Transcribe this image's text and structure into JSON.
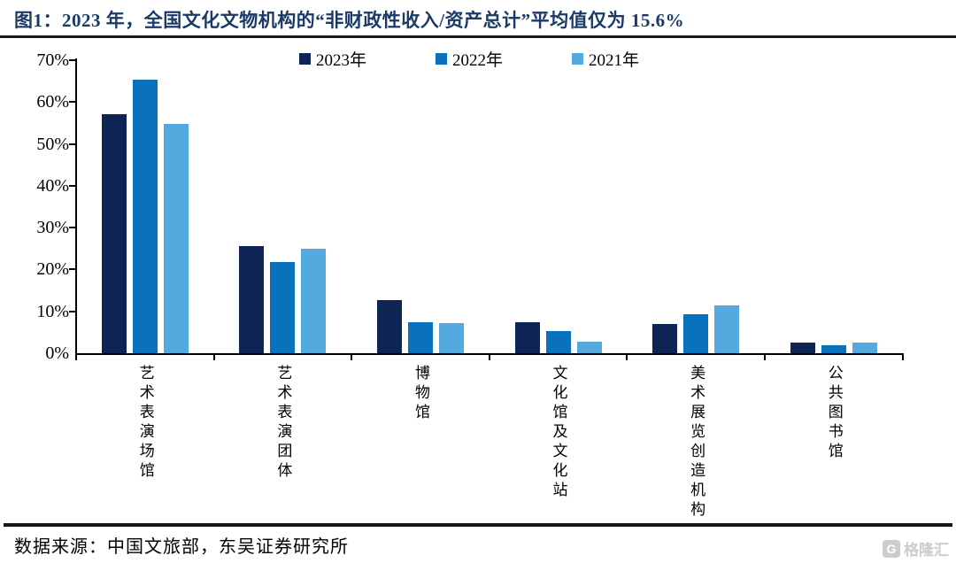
{
  "header": {
    "title": "图1：2023 年，全国文化文物机构的“非财政性收入/资产总计”平均值仅为 15.6%"
  },
  "footer": {
    "source": "数据来源：中国文旅部，东吴证券研究所",
    "watermark_icon": "G",
    "watermark_text": "格隆汇"
  },
  "chart_data": {
    "type": "bar",
    "title": "全国文化文物机构 非财政性收入/资产总计",
    "categories": [
      "艺术表演场馆",
      "艺术表演团体",
      "博物馆",
      "文化馆及文化站",
      "美术展览创造机构",
      "公共图书馆"
    ],
    "series": [
      {
        "name": "2023年",
        "color": "#0D2455",
        "values": [
          57.0,
          25.6,
          12.6,
          7.4,
          7.0,
          2.6
        ]
      },
      {
        "name": "2022年",
        "color": "#0A72BC",
        "values": [
          65.3,
          21.8,
          7.4,
          5.2,
          9.2,
          1.9
        ]
      },
      {
        "name": "2021年",
        "color": "#54AADF",
        "values": [
          54.7,
          25.0,
          7.2,
          2.8,
          11.4,
          2.5
        ]
      }
    ],
    "xlabel": "",
    "ylabel": "",
    "ylim": [
      0,
      70
    ],
    "ytick_step": 10,
    "ytick_format": "percent",
    "legend_position": "top",
    "grid": false,
    "axis_color": "#000000"
  }
}
